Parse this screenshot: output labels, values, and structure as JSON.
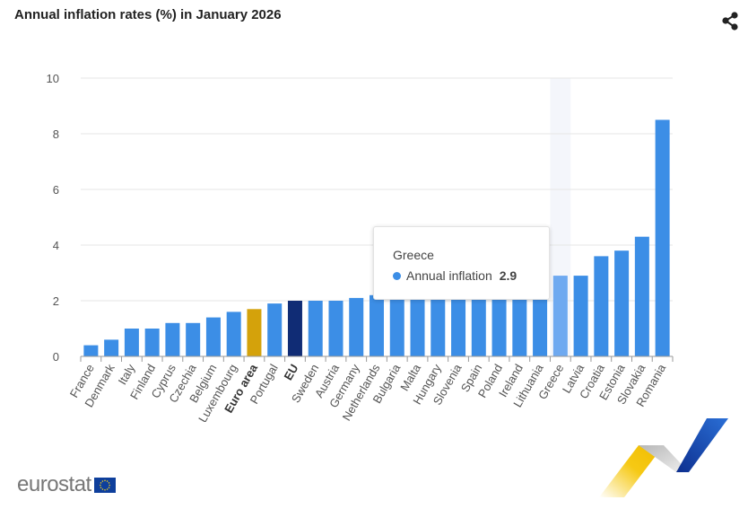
{
  "title": "Annual inflation rates (%) in January 2026",
  "share_icon": "share-icon",
  "logo_text": "eurostat",
  "colors": {
    "bar": "#3c8ee6",
    "bar_hover": "#6ea9f0",
    "euro_area": "#d4a20b",
    "eu": "#102c75",
    "grid": "#e6e6e6",
    "hover_band": "#f4f6fb"
  },
  "tooltip": {
    "title": "Greece",
    "series_label": "Annual inflation",
    "value": "2.9"
  },
  "chart_data": {
    "type": "bar",
    "title": "Annual inflation rates (%) in January 2026",
    "xlabel": "",
    "ylabel": "",
    "ylim": [
      0,
      10
    ],
    "yticks": [
      0,
      2,
      4,
      6,
      8,
      10
    ],
    "grid": true,
    "legend": "none",
    "hovered_category": "Greece",
    "categories": [
      "France",
      "Denmark",
      "Italy",
      "Finland",
      "Cyprus",
      "Czechia",
      "Belgium",
      "Luxembourg",
      "Euro area",
      "Portugal",
      "EU",
      "Sweden",
      "Austria",
      "Germany",
      "Netherlands",
      "Bulgaria",
      "Malta",
      "Hungary",
      "Slovenia",
      "Spain",
      "Poland",
      "Ireland",
      "Lithuania",
      "Greece",
      "Latvia",
      "Croatia",
      "Estonia",
      "Slovakia",
      "Romania"
    ],
    "bold_categories": [
      "Euro area",
      "EU"
    ],
    "series": [
      {
        "name": "Annual inflation",
        "values": [
          0.4,
          0.6,
          1.0,
          1.0,
          1.2,
          1.2,
          1.4,
          1.6,
          1.7,
          1.9,
          2.0,
          2.0,
          2.0,
          2.1,
          2.2,
          2.3,
          2.4,
          2.4,
          2.5,
          2.5,
          2.6,
          2.7,
          2.8,
          2.9,
          2.9,
          3.6,
          3.8,
          4.3,
          8.5
        ]
      }
    ]
  }
}
